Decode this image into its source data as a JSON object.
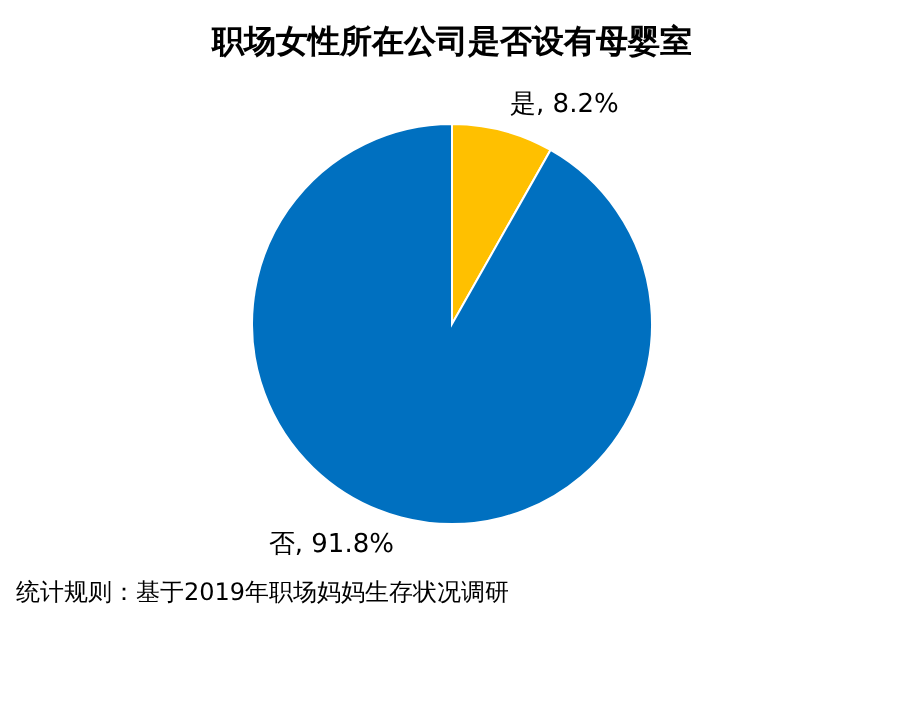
{
  "chart_data": {
    "type": "pie",
    "title": "职场女性所在公司是否设有母婴室",
    "categories": [
      "是",
      "否"
    ],
    "values": [
      8.2,
      91.8
    ],
    "value_labels": [
      "8.2%",
      "91.8%"
    ],
    "colors": [
      "#ffc000",
      "#0070c0"
    ],
    "annotations": [
      "统计规则：基于2019年职场妈妈生存状况调研"
    ]
  }
}
